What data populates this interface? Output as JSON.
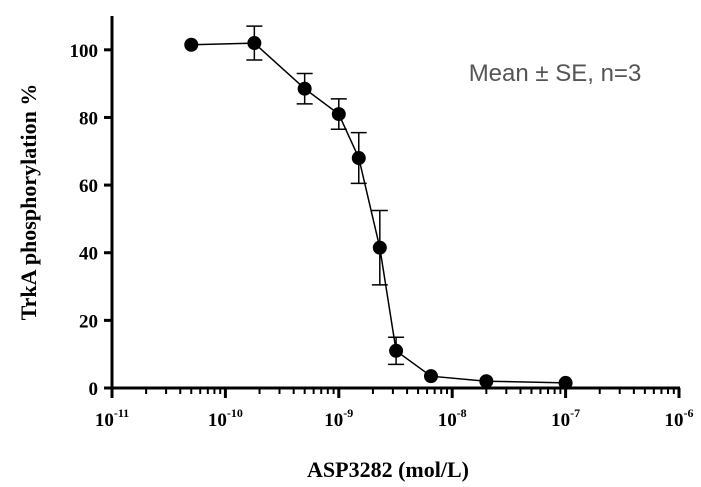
{
  "chart_data": {
    "type": "scatter",
    "xscale": "log",
    "xlabel": "ASP3282 (mol/L)",
    "ylabel": "TrkA phosphorylation %",
    "annotation": "Mean ± SE, n=3",
    "xlim": [
      1e-11,
      1e-06
    ],
    "ylim": [
      0,
      110
    ],
    "xticks": [
      {
        "value": 1e-11,
        "base": "10",
        "exp": "-11"
      },
      {
        "value": 1e-10,
        "base": "10",
        "exp": "-10"
      },
      {
        "value": 1e-09,
        "base": "10",
        "exp": "-9"
      },
      {
        "value": 1e-08,
        "base": "10",
        "exp": "-8"
      },
      {
        "value": 1e-07,
        "base": "10",
        "exp": "-7"
      },
      {
        "value": 1e-06,
        "base": "10",
        "exp": "-6"
      }
    ],
    "yticks": [
      {
        "value": 0,
        "label": "0"
      },
      {
        "value": 20,
        "label": "20"
      },
      {
        "value": 40,
        "label": "40"
      },
      {
        "value": 60,
        "label": "60"
      },
      {
        "value": 80,
        "label": "80"
      },
      {
        "value": 100,
        "label": "100"
      }
    ],
    "series": [
      {
        "points": [
          {
            "x": 5e-11,
            "y": 101.5,
            "err": 0
          },
          {
            "x": 1.8e-10,
            "y": 102,
            "err": 5
          },
          {
            "x": 5e-10,
            "y": 88.5,
            "err": 4.5
          },
          {
            "x": 1e-09,
            "y": 81,
            "err": 4.5
          },
          {
            "x": 1.5e-09,
            "y": 68,
            "err": 7.5
          },
          {
            "x": 2.3e-09,
            "y": 41.5,
            "err": 11
          },
          {
            "x": 3.2e-09,
            "y": 11,
            "err": 4
          },
          {
            "x": 6.5e-09,
            "y": 3.5,
            "err": 0
          },
          {
            "x": 2e-08,
            "y": 2,
            "err": 0
          },
          {
            "x": 1e-07,
            "y": 1.5,
            "err": 0
          }
        ]
      }
    ],
    "colors": {
      "series": "#000000",
      "annotation": "#555555"
    }
  }
}
